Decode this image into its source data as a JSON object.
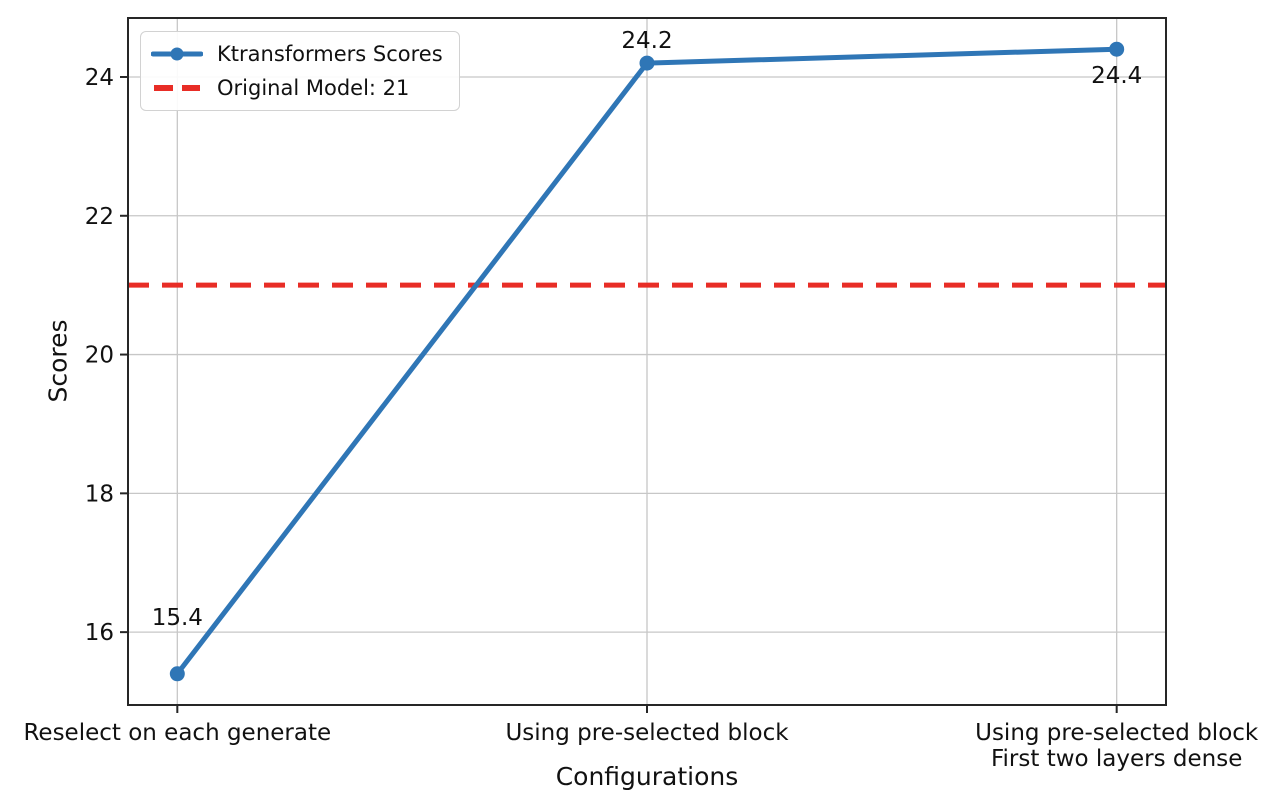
{
  "chart_data": {
    "type": "line",
    "categories": [
      "Reselect on each generate",
      "Using pre-selected block",
      "Using pre-selected block\nFirst two layers dense"
    ],
    "series": [
      {
        "name": "Ktransformers Scores",
        "values": [
          15.4,
          24.2,
          24.4
        ],
        "color": "#2f76b6",
        "marker": "circle"
      }
    ],
    "point_labels": [
      "15.4",
      "24.2",
      "24.4"
    ],
    "reference_line": {
      "label": "Original Model: 21",
      "value": 21,
      "color": "#e82d26",
      "style": "dashed"
    },
    "xlabel": "Configurations",
    "ylabel": "Scores",
    "yticks": [
      16,
      18,
      20,
      22,
      24
    ],
    "ylim": [
      14.95,
      24.85
    ],
    "grid": true,
    "legend_position": "upper left",
    "grid_color": "#c7c7c7",
    "spine_color": "#262626",
    "text_color": "#111111"
  }
}
